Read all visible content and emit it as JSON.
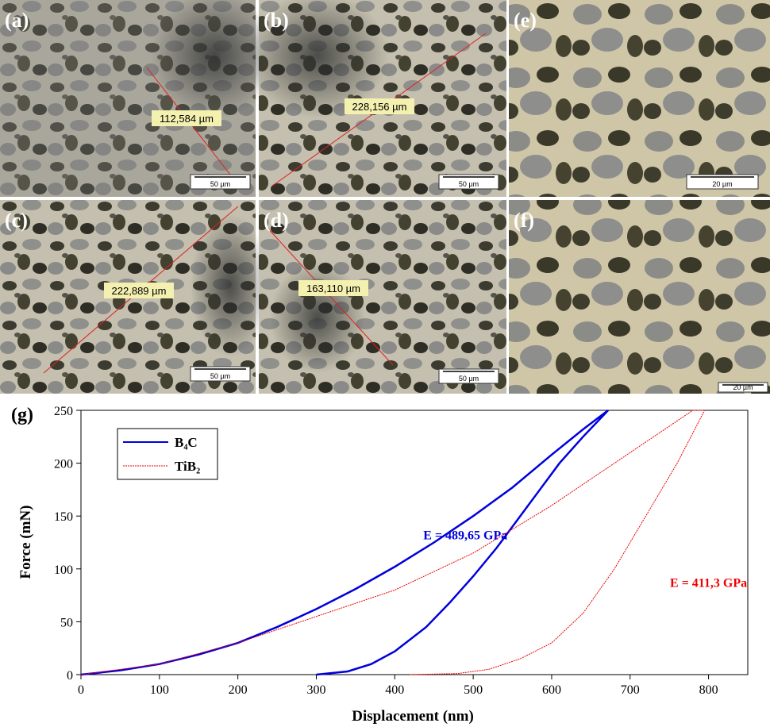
{
  "panels": [
    {
      "label": "(a)",
      "measurement": "112,584 µm",
      "scale": "50 µm"
    },
    {
      "label": "(b)",
      "measurement": "228,156 µm",
      "scale": "50 µm"
    },
    {
      "label": "(e)",
      "scale": "20 µm"
    },
    {
      "label": "(c)",
      "measurement": "222,889 µm",
      "scale": "50 µm"
    },
    {
      "label": "(d)",
      "measurement": "163,110 µm",
      "scale": "50 µm"
    },
    {
      "label": "(f)",
      "scale": "20 µm"
    }
  ],
  "chart_data": {
    "type": "line",
    "panel_label": "(g)",
    "x_label": "Displacement (nm)",
    "y_label": "Force (mN)",
    "xlim": [
      0,
      850
    ],
    "xticks": [
      0,
      100,
      200,
      300,
      400,
      500,
      600,
      700,
      800
    ],
    "ylim": [
      0,
      250
    ],
    "yticks": [
      0,
      50,
      100,
      150,
      200,
      250
    ],
    "series": [
      {
        "name": "B₄C",
        "color": "#0000dd",
        "x": [
          0,
          50,
          100,
          150,
          200,
          250,
          300,
          350,
          400,
          450,
          500,
          550,
          600,
          640,
          672,
          640,
          610,
          580,
          560,
          530,
          500,
          470,
          440,
          400,
          370,
          340,
          300
        ],
        "values": [
          0,
          4,
          10,
          19,
          30,
          45,
          62,
          81,
          102,
          125,
          150,
          177,
          208,
          232,
          250,
          225,
          200,
          170,
          150,
          120,
          93,
          68,
          45,
          22,
          10,
          3,
          0
        ]
      },
      {
        "name": "TiB₂",
        "color": "#ee0000",
        "dash": true,
        "x": [
          0,
          100,
          200,
          300,
          400,
          500,
          600,
          700,
          750,
          780,
          795,
          760,
          720,
          680,
          640,
          600,
          560,
          520,
          480,
          420
        ],
        "values": [
          0,
          10,
          30,
          55,
          80,
          115,
          160,
          210,
          235,
          250,
          250,
          200,
          150,
          100,
          58,
          30,
          15,
          5,
          1,
          0
        ]
      }
    ],
    "annotations": [
      {
        "text": "E = 489,65 GPa",
        "x": 490,
        "y": 128,
        "color": "#0000dd"
      },
      {
        "text": "E = 411,3 GPa",
        "x": 800,
        "y": 83,
        "color": "#ee0000"
      }
    ]
  }
}
